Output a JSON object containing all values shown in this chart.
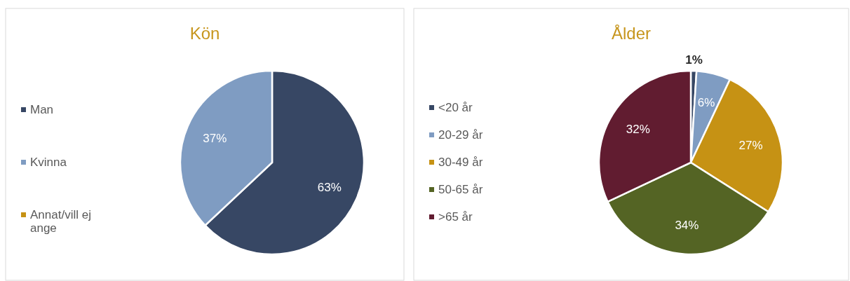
{
  "chart_data": [
    {
      "type": "pie",
      "title": "Kön",
      "categories": [
        "Man",
        "Kvinna",
        "Annat/vill ej ange"
      ],
      "values": [
        63,
        37,
        0
      ],
      "colors": [
        "#374764",
        "#7f9cc2",
        "#c69214"
      ],
      "value_labels": [
        "63%",
        "37%",
        null
      ],
      "legend": "left"
    },
    {
      "type": "pie",
      "title": "Ålder",
      "categories": [
        "<20 år",
        "20-29 år",
        "30-49 år",
        "50-65 år",
        ">65 år"
      ],
      "values": [
        1,
        6,
        27,
        34,
        32
      ],
      "colors": [
        "#374764",
        "#7f9cc2",
        "#c69214",
        "#546424",
        "#611c30"
      ],
      "value_labels": [
        "1%",
        "6%",
        "27%",
        "34%",
        "32%"
      ],
      "legend": "left"
    }
  ]
}
